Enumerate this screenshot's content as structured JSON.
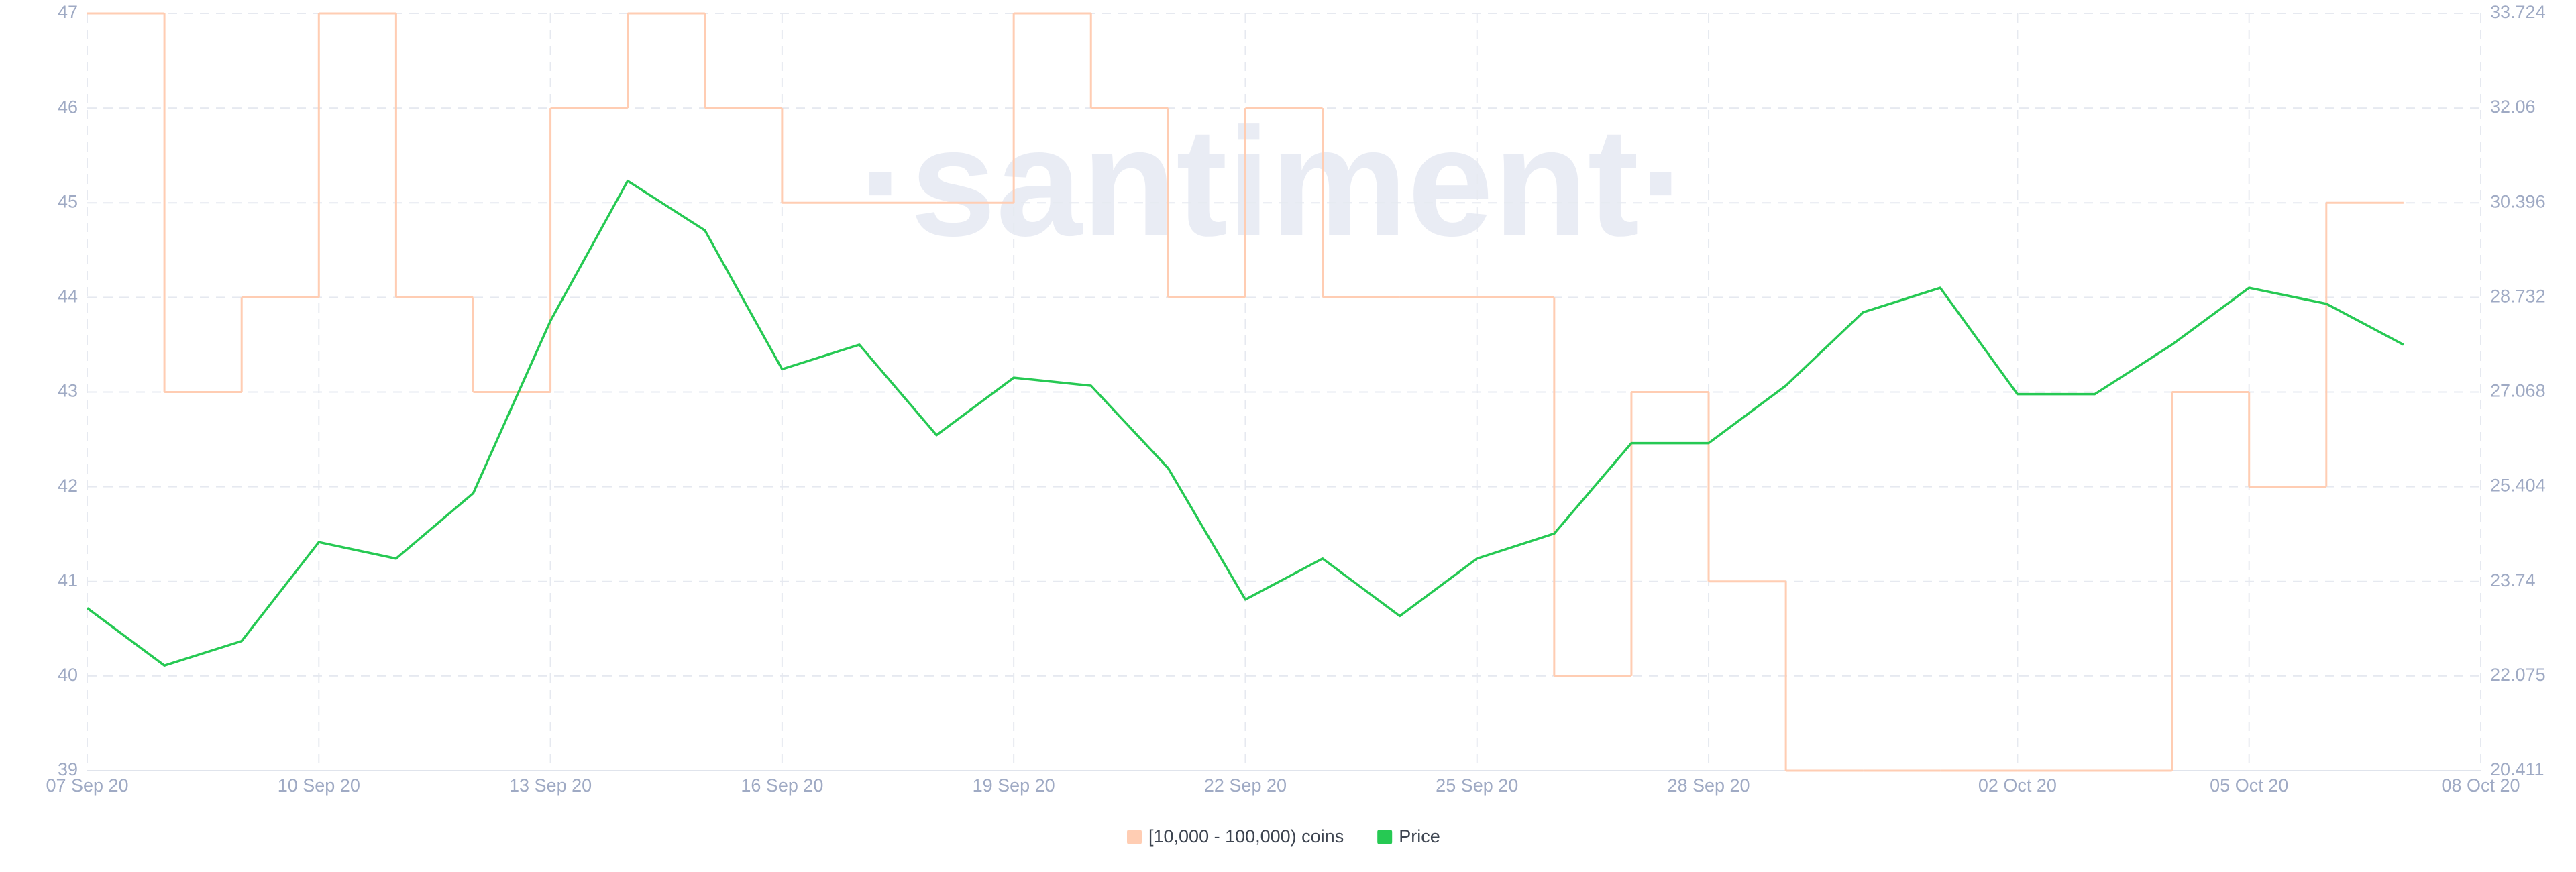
{
  "chart_data": {
    "type": "line",
    "watermark": "·santiment·",
    "xlim": [
      "2020-09-07",
      "2020-10-08"
    ],
    "xticks": [
      {
        "value": "2020-09-07",
        "label": "07 Sep 20"
      },
      {
        "value": "2020-09-10",
        "label": "10 Sep 20"
      },
      {
        "value": "2020-09-13",
        "label": "13 Sep 20"
      },
      {
        "value": "2020-09-16",
        "label": "16 Sep 20"
      },
      {
        "value": "2020-09-19",
        "label": "19 Sep 20"
      },
      {
        "value": "2020-09-22",
        "label": "22 Sep 20"
      },
      {
        "value": "2020-09-25",
        "label": "25 Sep 20"
      },
      {
        "value": "2020-09-28",
        "label": "28 Sep 20"
      },
      {
        "value": "2020-10-02",
        "label": "02 Oct 20"
      },
      {
        "value": "2020-10-05",
        "label": "05 Oct 20"
      },
      {
        "value": "2020-10-08",
        "label": "08 Oct 20"
      }
    ],
    "ylim": [
      39,
      47
    ],
    "yticks": [
      39,
      40,
      41,
      42,
      43,
      44,
      45,
      46,
      47
    ],
    "y2lim": [
      20.411,
      33.724
    ],
    "y2ticks": [
      20.411,
      22.075,
      23.74,
      25.404,
      27.068,
      28.732,
      30.396,
      32.06,
      33.724
    ],
    "grid": true,
    "series": [
      {
        "name": "[10,000 - 100,000) coins",
        "color": "#ffcdb3",
        "style": "step",
        "x": [
          "2020-09-07",
          "2020-09-08",
          "2020-09-09",
          "2020-09-10",
          "2020-09-11",
          "2020-09-12",
          "2020-09-13",
          "2020-09-14",
          "2020-09-15",
          "2020-09-16",
          "2020-09-17",
          "2020-09-18",
          "2020-09-19",
          "2020-09-20",
          "2020-09-21",
          "2020-09-22",
          "2020-09-23",
          "2020-09-24",
          "2020-09-25",
          "2020-09-26",
          "2020-09-27",
          "2020-09-28",
          "2020-09-29",
          "2020-09-30",
          "2020-10-01",
          "2020-10-02",
          "2020-10-03",
          "2020-10-04",
          "2020-10-05",
          "2020-10-06"
        ],
        "values": [
          47,
          43,
          44,
          47,
          44,
          43,
          46,
          47,
          46,
          45,
          45,
          45,
          47,
          46,
          44,
          46,
          44,
          44,
          44,
          40,
          43,
          41,
          39,
          39,
          39,
          39,
          39,
          43,
          42,
          45
        ]
      },
      {
        "name": "Price",
        "color": "#26c953",
        "axis": "y2",
        "style": "line",
        "x": [
          "2020-09-07",
          "2020-09-08",
          "2020-09-09",
          "2020-09-10",
          "2020-09-11",
          "2020-09-12",
          "2020-09-13",
          "2020-09-14",
          "2020-09-15",
          "2020-09-16",
          "2020-09-17",
          "2020-09-18",
          "2020-09-19",
          "2020-09-20",
          "2020-09-21",
          "2020-09-22",
          "2020-09-23",
          "2020-09-24",
          "2020-09-25",
          "2020-09-26",
          "2020-09-27",
          "2020-09-28",
          "2020-09-29",
          "2020-09-30",
          "2020-10-01",
          "2020-10-02",
          "2020-10-03",
          "2020-10-04",
          "2020-10-05",
          "2020-10-06",
          "2020-10-07"
        ],
        "values": [
          23.27,
          22.26,
          22.69,
          24.43,
          24.14,
          25.29,
          28.32,
          30.78,
          29.91,
          27.47,
          27.9,
          26.31,
          27.32,
          27.18,
          25.73,
          23.42,
          24.14,
          23.13,
          24.14,
          24.58,
          26.17,
          26.17,
          27.18,
          28.47,
          28.9,
          27.03,
          27.03,
          27.9,
          28.9,
          28.62,
          27.9
        ]
      }
    ]
  }
}
